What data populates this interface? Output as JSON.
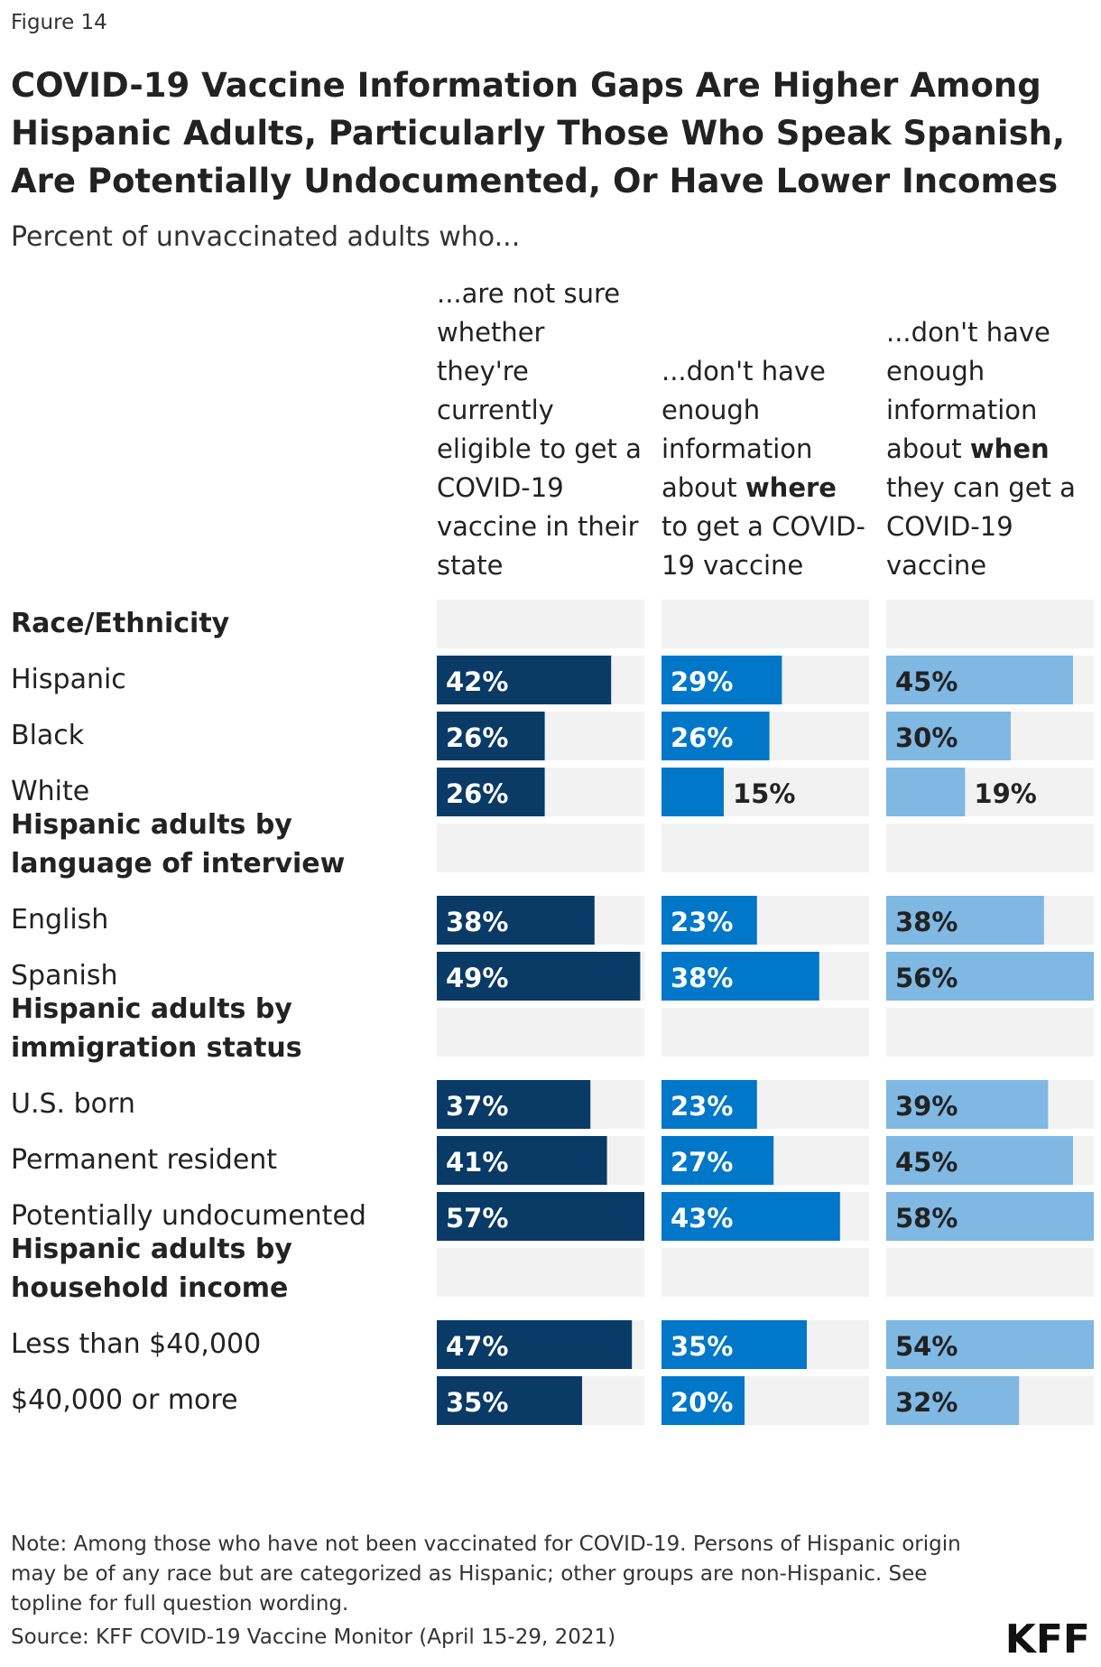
{
  "figure_label": "Figure 14",
  "title": "COVID-19 Vaccine Information Gaps Are Higher Among Hispanic Adults, Particularly Those Who Speak Spanish, Are Potentially Undocumented, Or Have Lower Incomes",
  "subtitle": "Percent of unvaccinated adults who...",
  "note": "Note: Among those who have not been vaccinated for COVID-19. Persons of Hispanic origin may be of any race but are categorized as Hispanic; other groups are non-Hispanic. See topline for full question wording.",
  "source": "Source: KFF COVID-19 Vaccine Monitor (April 15-29, 2021)",
  "logo": "KFF",
  "colors": {
    "col1": "#0a3a66",
    "col2": "#0077c8",
    "col3": "#7fb8e2",
    "track": "#f2f2f2",
    "label_light": "#ffffff",
    "label_dark": "#222222"
  },
  "chart_data": {
    "type": "bar",
    "title": "COVID-19 Vaccine Information Gaps Are Higher Among Hispanic Adults, Particularly Those Who Speak Spanish, Are Potentially Undocumented, Or Have Lower Incomes",
    "ylabel": "Percent of unvaccinated adults who...",
    "xlim": [
      0,
      100
    ],
    "columns": [
      {
        "name": "...are not sure whether they're currently eligible to get a COVID-19 vaccine in their state",
        "lines": [
          "...are not sure",
          "whether",
          "they're",
          "currently",
          "eligible to get a",
          "COVID-19",
          "vaccine in their",
          "state"
        ]
      },
      {
        "name": "...don't have enough information about where to get a COVID-19 vaccine",
        "lines": [
          "...don't have",
          "enough",
          "information",
          "about |where|",
          "to get a COVID-",
          "19 vaccine"
        ]
      },
      {
        "name": "...don't have enough information about when they can get a COVID-19 vaccine",
        "lines": [
          "...don't have",
          "enough",
          "information",
          "about |when|",
          "they can get a",
          "COVID-19",
          "vaccine"
        ]
      }
    ],
    "groups": [
      {
        "label": "Race/Ethnicity",
        "rows": [
          {
            "label": "Hispanic",
            "values": [
              42,
              29,
              45
            ],
            "labels": [
              "42%",
              "29%",
              "45%"
            ]
          },
          {
            "label": "Black",
            "values": [
              26,
              26,
              30
            ],
            "labels": [
              "26%",
              "26%",
              "30%"
            ]
          },
          {
            "label": "White",
            "values": [
              26,
              15,
              19
            ],
            "labels": [
              "26%",
              "15%",
              "19%"
            ]
          }
        ]
      },
      {
        "label": "Hispanic adults by language of interview",
        "rows": [
          {
            "label": "English",
            "values": [
              38,
              23,
              38
            ],
            "labels": [
              "38%",
              "23%",
              "38%"
            ]
          },
          {
            "label": "Spanish",
            "values": [
              49,
              38,
              56
            ],
            "labels": [
              "49%",
              "38%",
              "56%"
            ]
          }
        ]
      },
      {
        "label": "Hispanic adults by immigration status",
        "rows": [
          {
            "label": "U.S. born",
            "values": [
              37,
              23,
              39
            ],
            "labels": [
              "37%",
              "23%",
              "39%"
            ]
          },
          {
            "label": "Permanent resident",
            "values": [
              41,
              27,
              45
            ],
            "labels": [
              "41%",
              "27%",
              "45%"
            ]
          },
          {
            "label": "Potentially undocumented",
            "values": [
              57,
              43,
              58
            ],
            "labels": [
              "57%",
              "43%",
              "58%"
            ]
          }
        ]
      },
      {
        "label": "Hispanic adults by household income",
        "rows": [
          {
            "label": "Less than $40,000",
            "values": [
              47,
              35,
              54
            ],
            "labels": [
              "47%",
              "35%",
              "54%"
            ]
          },
          {
            "label": "$40,000 or more",
            "values": [
              35,
              20,
              32
            ],
            "labels": [
              "35%",
              "20%",
              "32%"
            ]
          }
        ]
      }
    ]
  }
}
